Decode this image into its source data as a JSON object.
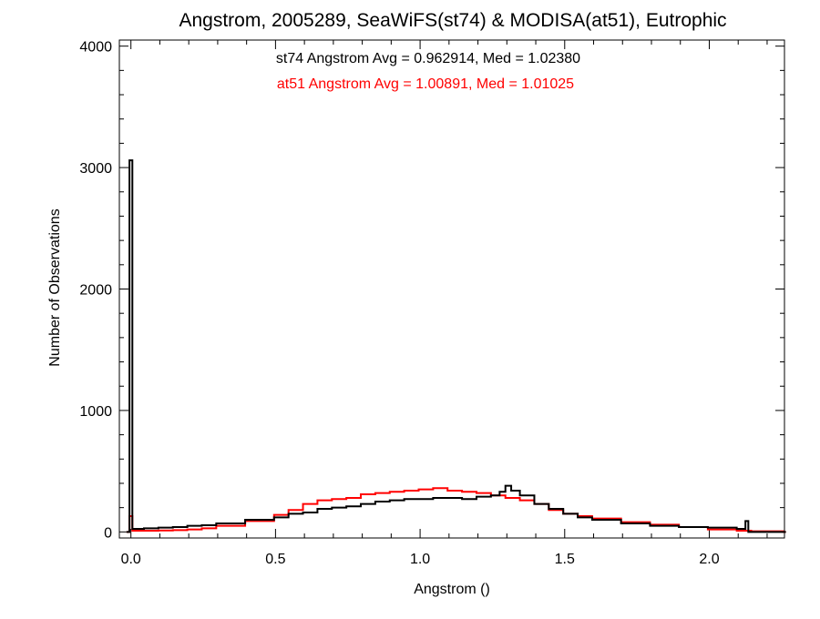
{
  "chart_data": {
    "type": "bar",
    "title": "Angstrom, 2005289, SeaWiFS(st74) & MODISA(at51), Eutrophic",
    "xlabel": "Angstrom ()",
    "ylabel": "Number of Observations",
    "xlim": [
      -0.04,
      2.26
    ],
    "ylim": [
      -50,
      4050
    ],
    "x_ticks": [
      0.0,
      0.5,
      1.0,
      1.5,
      2.0
    ],
    "x_tick_labels": [
      "0.0",
      "0.5",
      "1.0",
      "1.5",
      "2.0"
    ],
    "y_ticks": [
      0,
      1000,
      2000,
      3000,
      4000
    ],
    "y_tick_labels": [
      "0",
      "1000",
      "2000",
      "3000",
      "4000"
    ],
    "grid": false,
    "annotations": [
      {
        "text": "st74 Angstrom Avg = 0.962914, Med = 1.02380",
        "color": "#000000"
      },
      {
        "text": "at51 Angstrom Avg = 1.00891, Med = 1.01025",
        "color": "#ff0000"
      }
    ],
    "bin_width": 0.01,
    "series": [
      {
        "color": "#000000",
        "x": [
          -0.01,
          0.0,
          0.01,
          0.05,
          0.1,
          0.15,
          0.2,
          0.25,
          0.3,
          0.4,
          0.5,
          0.55,
          0.6,
          0.65,
          0.7,
          0.75,
          0.8,
          0.85,
          0.9,
          0.95,
          1.0,
          1.05,
          1.1,
          1.15,
          1.2,
          1.25,
          1.28,
          1.3,
          1.32,
          1.35,
          1.4,
          1.45,
          1.5,
          1.55,
          1.6,
          1.7,
          1.8,
          1.9,
          2.0,
          2.1,
          2.13,
          2.14,
          2.15,
          2.2,
          2.26
        ],
        "values": [
          0,
          3060,
          25,
          30,
          35,
          40,
          50,
          55,
          70,
          100,
          120,
          150,
          160,
          190,
          200,
          210,
          230,
          250,
          260,
          270,
          270,
          280,
          280,
          270,
          290,
          300,
          330,
          380,
          340,
          300,
          230,
          190,
          150,
          120,
          100,
          70,
          50,
          40,
          35,
          25,
          90,
          0,
          0,
          0,
          0
        ]
      },
      {
        "color": "#ff0000",
        "x": [
          -0.01,
          0.0,
          0.01,
          0.05,
          0.1,
          0.15,
          0.2,
          0.25,
          0.3,
          0.4,
          0.5,
          0.55,
          0.6,
          0.65,
          0.7,
          0.75,
          0.8,
          0.85,
          0.9,
          0.95,
          1.0,
          1.05,
          1.1,
          1.15,
          1.2,
          1.25,
          1.3,
          1.35,
          1.4,
          1.45,
          1.5,
          1.55,
          1.6,
          1.7,
          1.8,
          1.9,
          2.0,
          2.1,
          2.15,
          2.2,
          2.26
        ],
        "values": [
          0,
          130,
          10,
          10,
          12,
          15,
          20,
          30,
          50,
          90,
          140,
          180,
          230,
          260,
          270,
          280,
          310,
          320,
          330,
          340,
          350,
          360,
          340,
          330,
          320,
          300,
          280,
          260,
          230,
          180,
          150,
          130,
          110,
          80,
          60,
          40,
          20,
          10,
          5,
          5,
          0
        ]
      }
    ]
  }
}
